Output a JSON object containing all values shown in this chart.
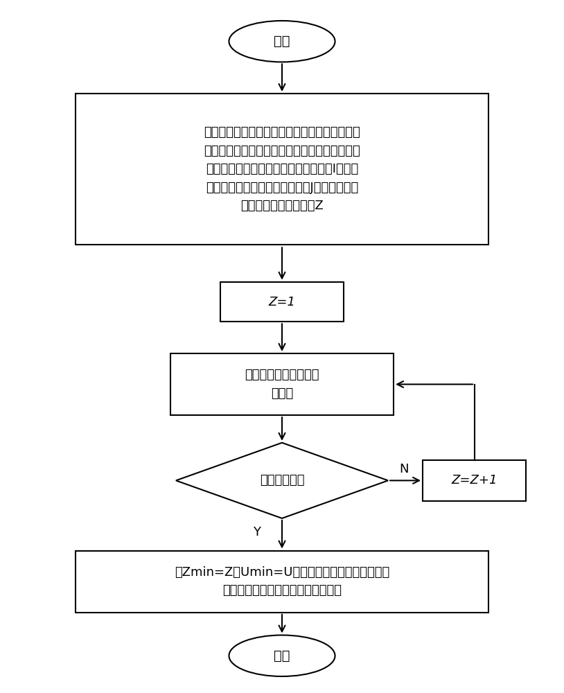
{
  "bg_color": "#ffffff",
  "line_color": "#000000",
  "text_color": "#000000",
  "start_text": "开始",
  "end_text": "结束",
  "box1_text_lines": [
    "令区域智能配电网初级技术方案需要改善的建设",
    "目标为初级建设目标集中所包含的所有建设目标",
    "，令初级建设目标集中建设目标总数为I，令可",
    "在该区域发展的技术种类总数为J，令初级技术",
    "方案中的技术种类数为Z"
  ],
  "box2_text": "Z=1",
  "box3_text_lines": [
    "求解技术方案多配置组",
    "合模型"
  ],
  "diamond_text": "模型是否有解",
  "box4_text_lines": [
    "令Zmin=Z，Umin=U，并整理此时选取的技术为该",
    "区域建设智能配电网的初级技术方案"
  ],
  "boxZ_text": "Z=Z+1",
  "label_Y": "Y",
  "label_N": "N",
  "lw": 1.5
}
